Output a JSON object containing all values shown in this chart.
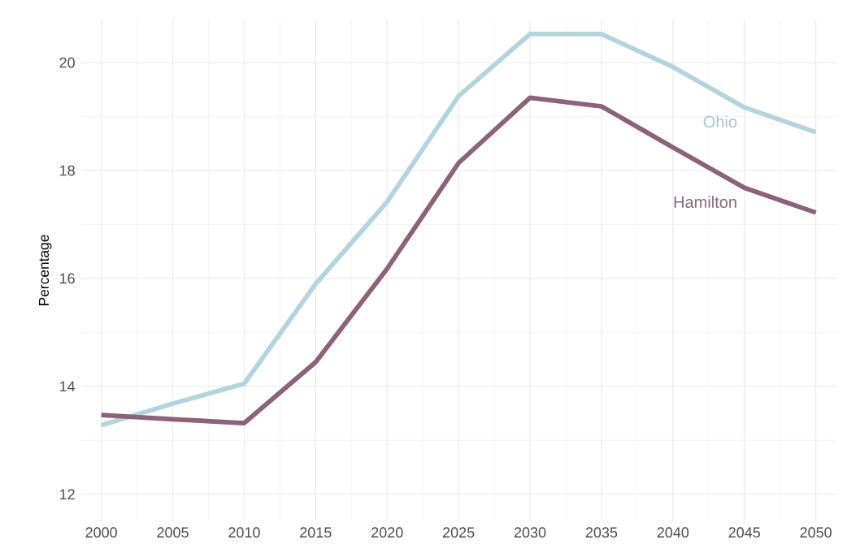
{
  "chart_data": {
    "type": "line",
    "ylabel": "Percentage",
    "x": [
      2000,
      2005,
      2010,
      2015,
      2020,
      2025,
      2030,
      2035,
      2040,
      2045,
      2050
    ],
    "series": [
      {
        "name": "Ohio",
        "color": "#b5d3dd",
        "values": [
          13.28,
          13.68,
          14.05,
          15.9,
          17.42,
          19.38,
          20.53,
          20.53,
          19.92,
          19.17,
          18.71
        ]
      },
      {
        "name": "Hamilton",
        "color": "#8a6378",
        "values": [
          13.47,
          13.39,
          13.32,
          14.45,
          16.18,
          18.14,
          19.35,
          19.19,
          18.43,
          17.68,
          17.22
        ]
      }
    ],
    "xlim": [
      1998.6,
      2051.5
    ],
    "ylim": [
      11.5,
      20.8
    ],
    "xticks": [
      2000,
      2005,
      2010,
      2015,
      2020,
      2025,
      2030,
      2035,
      2040,
      2045,
      2050
    ],
    "yticks": [
      12,
      14,
      16,
      18,
      20
    ],
    "grid": true,
    "legend": false,
    "marker": "none",
    "line_style": "solid"
  }
}
